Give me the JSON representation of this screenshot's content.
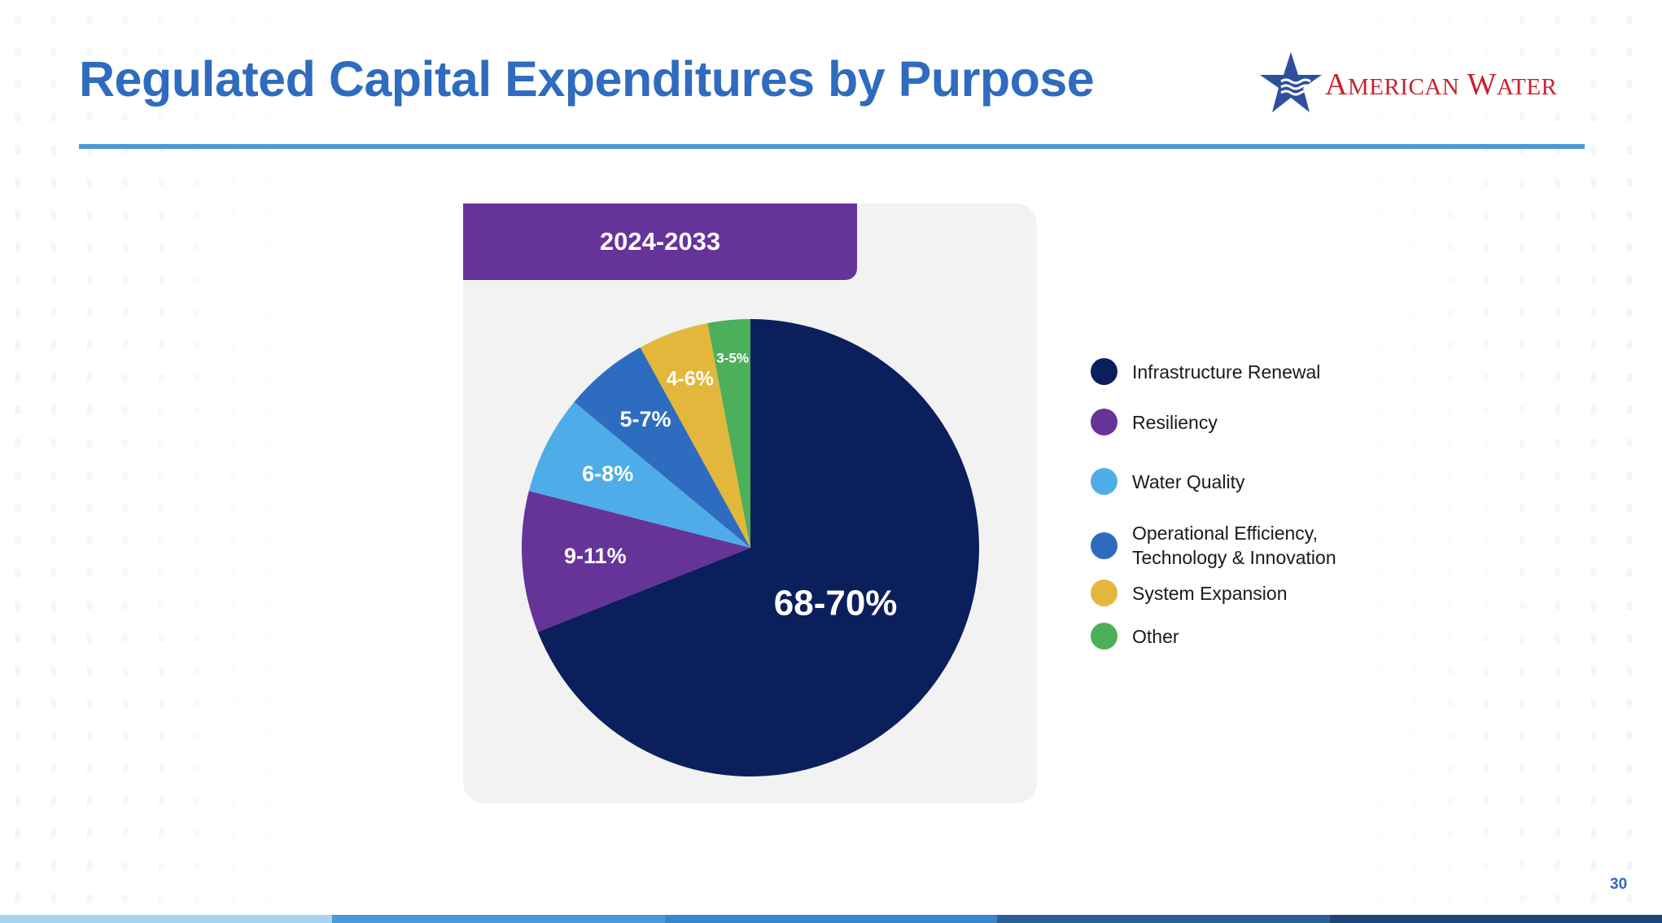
{
  "slide": {
    "title": "Regulated Capital Expenditures by Purpose",
    "logo_text": "American Water",
    "page_number": "30",
    "colors": {
      "title": "#2f6bbf",
      "rule": "#4a9ad8",
      "period_tab": "#663399",
      "logo_text": "#c8202f",
      "logo_star": "#2d4f9e"
    }
  },
  "chart_data": {
    "type": "pie",
    "period": "2024-2033",
    "slices": [
      {
        "name": "Infrastructure Renewal",
        "label": "68-70%",
        "value": 69,
        "color": "#0b1f5c"
      },
      {
        "name": "Resiliency",
        "label": "9-11%",
        "value": 10,
        "color": "#663399"
      },
      {
        "name": "Water Quality",
        "label": "6-8%",
        "value": 7,
        "color": "#4eade8"
      },
      {
        "name": "Operational Efficiency, Technology & Innovation",
        "label": "5-7%",
        "value": 6,
        "color": "#2e6cbf"
      },
      {
        "name": "System Expansion",
        "label": "4-6%",
        "value": 5,
        "color": "#e3b73b"
      },
      {
        "name": "Other",
        "label": "3-5%",
        "value": 3,
        "color": "#4caf5a"
      }
    ],
    "legend": [
      {
        "label": "Infrastructure Renewal",
        "color": "#0b1f5c"
      },
      {
        "label": "Resiliency",
        "color": "#663399"
      },
      {
        "label": "Water Quality",
        "color": "#4eade8"
      },
      {
        "label": "Operational Efficiency,\nTechnology & Innovation",
        "color": "#2e6cbf"
      },
      {
        "label": "System Expansion",
        "color": "#e3b73b"
      },
      {
        "label": "Other",
        "color": "#4caf5a"
      }
    ],
    "legend_placement": "right"
  },
  "footer": {
    "colors": [
      "#a9d2f0",
      "#4a9ad8",
      "#3a86cc",
      "#2a5f98",
      "#1e4576"
    ]
  }
}
